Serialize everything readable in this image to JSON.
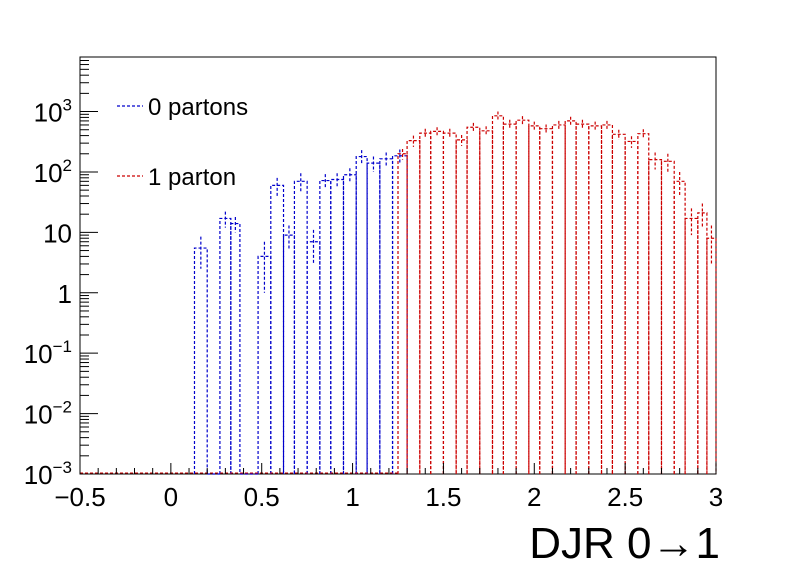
{
  "chart_data": {
    "type": "line",
    "style": "step-histogram",
    "xlabel": "DJR 0→1",
    "ylabel": "",
    "xlim": [
      -0.5,
      3.0
    ],
    "ylim": [
      0.001,
      8000
    ],
    "y_scale": "log",
    "grid": false,
    "legend_position": "top-left",
    "x_ticks": [
      {
        "value": -0.5,
        "label": "−0.5"
      },
      {
        "value": 0,
        "label": "0"
      },
      {
        "value": 0.5,
        "label": "0.5"
      },
      {
        "value": 1,
        "label": "1"
      },
      {
        "value": 1.5,
        "label": "1.5"
      },
      {
        "value": 2,
        "label": "2"
      },
      {
        "value": 2.5,
        "label": "2.5"
      },
      {
        "value": 3,
        "label": "3"
      }
    ],
    "y_ticks": [
      {
        "value": 0.001,
        "base": "10",
        "exp": "−3"
      },
      {
        "value": 0.01,
        "base": "10",
        "exp": "−2"
      },
      {
        "value": 0.1,
        "base": "10",
        "exp": "−1"
      },
      {
        "value": 1,
        "base": "1",
        "exp": ""
      },
      {
        "value": 10,
        "base": "10",
        "exp": ""
      },
      {
        "value": 100,
        "base": "10",
        "exp": "2"
      },
      {
        "value": 1000,
        "base": "10",
        "exp": "3"
      }
    ],
    "series": [
      {
        "name": "0 partons",
        "color": "#0000cc",
        "bins": [
          {
            "x0": 0.13,
            "x1": 0.2,
            "y": 5.5,
            "err": 3
          },
          {
            "x0": 0.2,
            "x1": 0.27,
            "y": 0.001,
            "err": 0
          },
          {
            "x0": 0.27,
            "x1": 0.33,
            "y": 17,
            "err": 5
          },
          {
            "x0": 0.33,
            "x1": 0.38,
            "y": 14,
            "err": 4
          },
          {
            "x0": 0.38,
            "x1": 0.48,
            "y": 0.001,
            "err": 0
          },
          {
            "x0": 0.48,
            "x1": 0.55,
            "y": 4,
            "err": 3
          },
          {
            "x0": 0.55,
            "x1": 0.62,
            "y": 60,
            "err": 20
          },
          {
            "x0": 0.62,
            "x1": 0.68,
            "y": 9,
            "err": 4
          },
          {
            "x0": 0.68,
            "x1": 0.75,
            "y": 70,
            "err": 25
          },
          {
            "x0": 0.75,
            "x1": 0.82,
            "y": 7,
            "err": 4
          },
          {
            "x0": 0.82,
            "x1": 0.88,
            "y": 72,
            "err": 20
          },
          {
            "x0": 0.88,
            "x1": 0.95,
            "y": 75,
            "err": 20
          },
          {
            "x0": 0.95,
            "x1": 1.02,
            "y": 90,
            "err": 25
          },
          {
            "x0": 1.02,
            "x1": 1.08,
            "y": 180,
            "err": 50
          },
          {
            "x0": 1.08,
            "x1": 1.15,
            "y": 140,
            "err": 40
          },
          {
            "x0": 1.15,
            "x1": 1.22,
            "y": 165,
            "err": 45
          },
          {
            "x0": 1.22,
            "x1": 1.3,
            "y": 185,
            "err": 50
          }
        ]
      },
      {
        "name": "1 parton",
        "color": "#cc0000",
        "bins": [
          {
            "x0": 1.25,
            "x1": 1.3,
            "y": 200,
            "err": 40
          },
          {
            "x0": 1.3,
            "x1": 1.37,
            "y": 330,
            "err": 70
          },
          {
            "x0": 1.37,
            "x1": 1.43,
            "y": 440,
            "err": 80
          },
          {
            "x0": 1.43,
            "x1": 1.5,
            "y": 470,
            "err": 80
          },
          {
            "x0": 1.5,
            "x1": 1.57,
            "y": 440,
            "err": 80
          },
          {
            "x0": 1.57,
            "x1": 1.63,
            "y": 340,
            "err": 70
          },
          {
            "x0": 1.63,
            "x1": 1.7,
            "y": 550,
            "err": 100
          },
          {
            "x0": 1.7,
            "x1": 1.77,
            "y": 480,
            "err": 90
          },
          {
            "x0": 1.77,
            "x1": 1.83,
            "y": 850,
            "err": 150
          },
          {
            "x0": 1.83,
            "x1": 1.9,
            "y": 620,
            "err": 110
          },
          {
            "x0": 1.9,
            "x1": 1.97,
            "y": 720,
            "err": 120
          },
          {
            "x0": 1.97,
            "x1": 2.03,
            "y": 580,
            "err": 100
          },
          {
            "x0": 2.03,
            "x1": 2.1,
            "y": 520,
            "err": 90
          },
          {
            "x0": 2.1,
            "x1": 2.17,
            "y": 600,
            "err": 100
          },
          {
            "x0": 2.17,
            "x1": 2.23,
            "y": 700,
            "err": 120
          },
          {
            "x0": 2.23,
            "x1": 2.3,
            "y": 620,
            "err": 110
          },
          {
            "x0": 2.3,
            "x1": 2.37,
            "y": 580,
            "err": 100
          },
          {
            "x0": 2.37,
            "x1": 2.43,
            "y": 600,
            "err": 100
          },
          {
            "x0": 2.43,
            "x1": 2.5,
            "y": 420,
            "err": 80
          },
          {
            "x0": 2.5,
            "x1": 2.57,
            "y": 320,
            "err": 70
          },
          {
            "x0": 2.57,
            "x1": 2.63,
            "y": 430,
            "err": 80
          },
          {
            "x0": 2.63,
            "x1": 2.7,
            "y": 160,
            "err": 50
          },
          {
            "x0": 2.7,
            "x1": 2.77,
            "y": 150,
            "err": 50
          },
          {
            "x0": 2.77,
            "x1": 2.83,
            "y": 70,
            "err": 30
          },
          {
            "x0": 2.83,
            "x1": 2.9,
            "y": 17,
            "err": 8
          },
          {
            "x0": 2.9,
            "x1": 2.95,
            "y": 21,
            "err": 9
          },
          {
            "x0": 2.95,
            "x1": 3.0,
            "y": 8,
            "err": 5
          }
        ]
      }
    ]
  }
}
